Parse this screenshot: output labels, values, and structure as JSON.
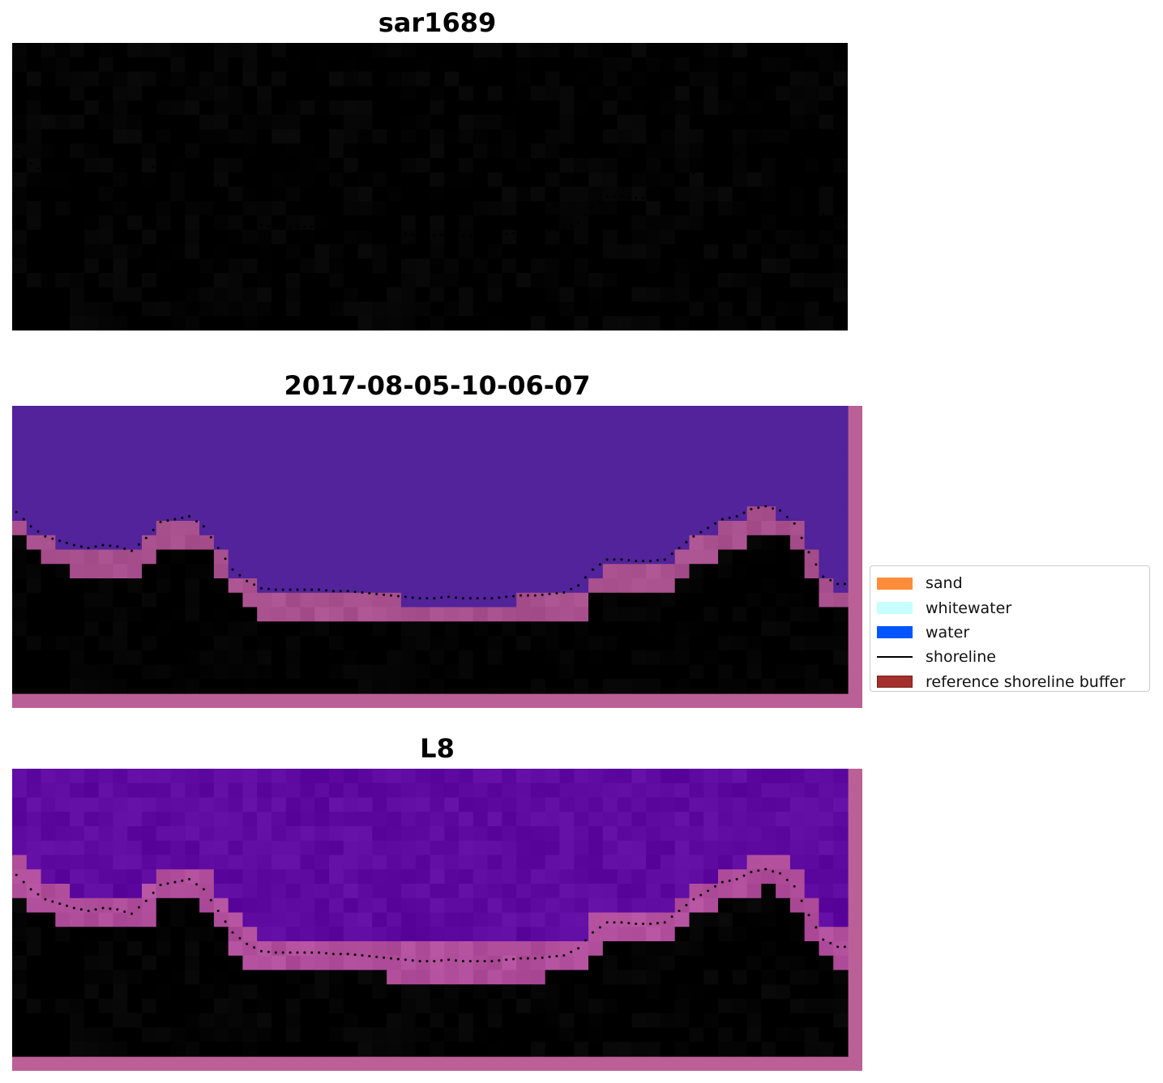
{
  "panels": [
    {
      "title": "sar1689",
      "style": "rgb"
    },
    {
      "title": "2017-08-05-10-06-07",
      "style": "classified"
    },
    {
      "title": "L8",
      "style": "index"
    }
  ],
  "legend": {
    "items": [
      {
        "label": "sand",
        "kind": "patch",
        "color": "#ff8c3a"
      },
      {
        "label": "whitewater",
        "kind": "patch",
        "color": "#c8ffff"
      },
      {
        "label": "water",
        "kind": "patch",
        "color": "#0055ff"
      },
      {
        "label": "shoreline",
        "kind": "line",
        "color": "#000000"
      },
      {
        "label": "reference shoreline buffer",
        "kind": "patch",
        "color": "#a3302d",
        "edge": "#7a1f1c"
      }
    ]
  },
  "colors": {
    "sky_light": "#6ec3f8",
    "sky_mid": "#6c9fd3",
    "surf_white": "#eef8f4",
    "land_gray": "#6e8ba8",
    "land_pink": "#d2bccc",
    "class_water": "#52239a",
    "class_land": "#7c3474",
    "class_border": "#bb6096",
    "index_water": "#5e0aa0",
    "index_land": "#c43066",
    "index_deep": "#c0062c"
  }
}
